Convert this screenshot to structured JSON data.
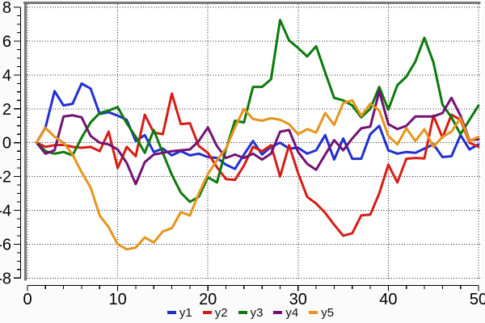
{
  "chart_data": {
    "type": "line",
    "title": "",
    "xlabel": "",
    "ylabel": "",
    "xlim": [
      0,
      50
    ],
    "ylim": [
      -8,
      8
    ],
    "x_major_ticks": [
      0,
      10,
      20,
      30,
      40,
      50
    ],
    "x_minor_step": 2,
    "y_major_ticks": [
      8,
      6,
      4,
      2,
      0,
      -2,
      -4,
      -6,
      -8
    ],
    "y_minor_step": 0.5,
    "grid": "dotted-major",
    "legend_position": "bottom",
    "frame_color": "#787878",
    "grid_color": "#202020",
    "axis_color": "#000000",
    "background": "#fbfbfb",
    "x": [
      1,
      2,
      3,
      4,
      5,
      6,
      7,
      8,
      9,
      10,
      11,
      12,
      13,
      14,
      15,
      16,
      17,
      18,
      19,
      20,
      21,
      22,
      23,
      24,
      25,
      26,
      27,
      28,
      29,
      30,
      31,
      32,
      33,
      34,
      35,
      36,
      37,
      38,
      39,
      40,
      41,
      42,
      43,
      44,
      45,
      46,
      47,
      48,
      49,
      50
    ],
    "series": [
      {
        "name": "y1",
        "color": "#2030d0",
        "values": [
          0,
          0.9,
          3.05,
          2.2,
          2.3,
          3.5,
          3.2,
          1.7,
          1.8,
          1.6,
          1.35,
          0.1,
          0.45,
          -0.55,
          -0.35,
          -0.75,
          -0.5,
          -0.75,
          -0.65,
          -0.85,
          -0.9,
          -1.3,
          -1.55,
          -0.7,
          0.1,
          -0.7,
          -0.25,
          0,
          -0.35,
          -0.3,
          -0.65,
          -0.45,
          0.45,
          -1,
          0.25,
          -0.95,
          -0.95,
          0.5,
          1,
          -0.45,
          -0.65,
          -0.55,
          -0.6,
          -0.35,
          -0.1,
          -0.85,
          -0.8,
          0.45,
          -0.4,
          -0.1
        ]
      },
      {
        "name": "y2",
        "color": "#d61d15",
        "values": [
          0,
          -0.25,
          -0.15,
          -0.13,
          -0.25,
          -0.3,
          -0.25,
          -0.5,
          0.65,
          -1.5,
          -0.25,
          -0.8,
          1.65,
          0.6,
          0.5,
          2.9,
          1.1,
          1.15,
          -0.2,
          -0.6,
          -1.45,
          -2.15,
          -2.2,
          -1.35,
          -0.25,
          -0.5,
          -0.15,
          -2,
          -0.15,
          -1.8,
          -3.2,
          -3.6,
          -4.15,
          -4.85,
          -5.5,
          -5.35,
          -4.3,
          -4.25,
          -3,
          -1.3,
          -2.35,
          -0.95,
          -0.9,
          -0.93,
          1.6,
          0.3,
          1.65,
          1.35,
          0,
          -0.25
        ]
      },
      {
        "name": "y3",
        "color": "#0b7a0b",
        "values": [
          0,
          -0.5,
          -0.65,
          -0.55,
          -0.75,
          0.3,
          1.2,
          1.75,
          1.9,
          2.1,
          1.15,
          0.35,
          -0.6,
          0.75,
          -0.6,
          -1.9,
          -2.95,
          -3.5,
          -3.2,
          -2.05,
          -2.35,
          -0.4,
          1.3,
          1.2,
          3.3,
          3.3,
          3.75,
          7.25,
          6.05,
          5.6,
          5.1,
          5.7,
          4.15,
          2.65,
          2.5,
          2.2,
          1.5,
          2,
          3.3,
          1.95,
          3.4,
          3.9,
          4.8,
          6.2,
          4.75,
          2.25,
          1.5,
          0.5,
          1.35,
          2.2
        ]
      },
      {
        "name": "y4",
        "color": "#731273",
        "values": [
          0,
          -0.65,
          -0.45,
          1.55,
          1.62,
          1.5,
          0.4,
          0,
          -0.1,
          -0.4,
          -1.2,
          -2.45,
          -1.15,
          -0.7,
          -0.6,
          -0.5,
          -0.45,
          -0.4,
          0.1,
          0.9,
          -0.2,
          -0.9,
          -0.7,
          -0.9,
          -0.65,
          -1,
          -0.65,
          0.65,
          0.75,
          -0.55,
          -1.25,
          -1.6,
          -0.7,
          0.15,
          -0.45,
          0.25,
          0.85,
          0.95,
          3.05,
          1.1,
          0.8,
          1,
          1.55,
          1.55,
          1.55,
          1.75,
          2.65,
          1.6,
          0.15,
          0.2
        ]
      },
      {
        "name": "y5",
        "color": "#e6941c",
        "values": [
          0,
          0.88,
          0.35,
          0,
          -0.7,
          -1.75,
          -2.65,
          -4.3,
          -5,
          -6,
          -6.3,
          -6.2,
          -5.6,
          -5.9,
          -5.25,
          -5.05,
          -4.1,
          -4.3,
          -3,
          -1.85,
          -1.05,
          -0.35,
          0.9,
          2,
          1.4,
          1.3,
          1.45,
          1.35,
          1.1,
          0.5,
          0.8,
          0.6,
          1.75,
          1.05,
          2.35,
          2.5,
          1.6,
          2.3,
          1.9,
          0.4,
          -0.1,
          0.85,
          0.1,
          0.8,
          -0.25,
          0.35,
          0.65,
          1.45,
          0.1,
          0.35
        ]
      }
    ]
  }
}
